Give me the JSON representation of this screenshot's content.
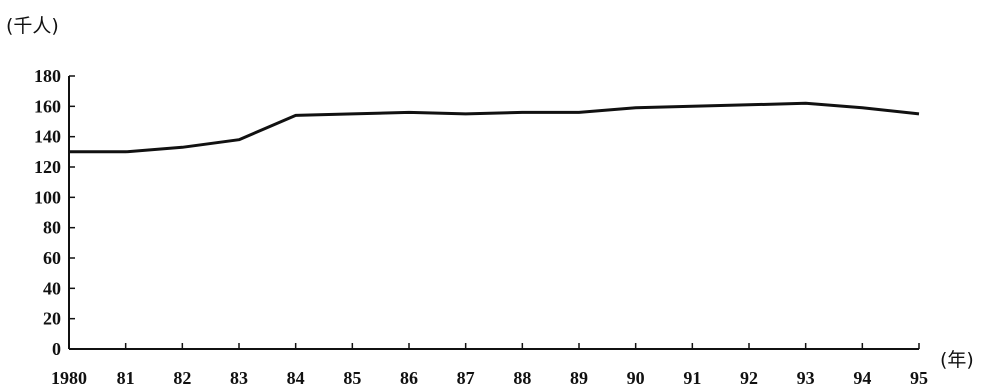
{
  "chart_data": {
    "type": "line",
    "title": "",
    "xlabel": "(年)",
    "ylabel": "(千人)",
    "x": [
      "1980",
      "81",
      "82",
      "83",
      "84",
      "85",
      "86",
      "87",
      "88",
      "89",
      "90",
      "91",
      "92",
      "93",
      "94",
      "95"
    ],
    "x_tick_labels": [
      "1980",
      "81",
      "82",
      "83",
      "84",
      "85",
      "86",
      "87",
      "88",
      "89",
      "90",
      "91",
      "92",
      "93",
      "94",
      "95"
    ],
    "y_ticks": [
      0,
      20,
      40,
      60,
      80,
      100,
      120,
      140,
      160,
      180
    ],
    "y_tick_labels": [
      "0",
      "20",
      "40",
      "60",
      "80",
      "100",
      "120",
      "140",
      "160",
      "180"
    ],
    "ylim": [
      0,
      180
    ],
    "grid": false,
    "legend": "none",
    "series": [
      {
        "values": [
          130,
          130,
          133,
          138,
          154,
          155,
          156,
          155,
          156,
          156,
          159,
          160,
          161,
          162,
          159,
          155
        ]
      }
    ],
    "colors": {
      "line": "#111111",
      "axis": "#111111"
    }
  }
}
